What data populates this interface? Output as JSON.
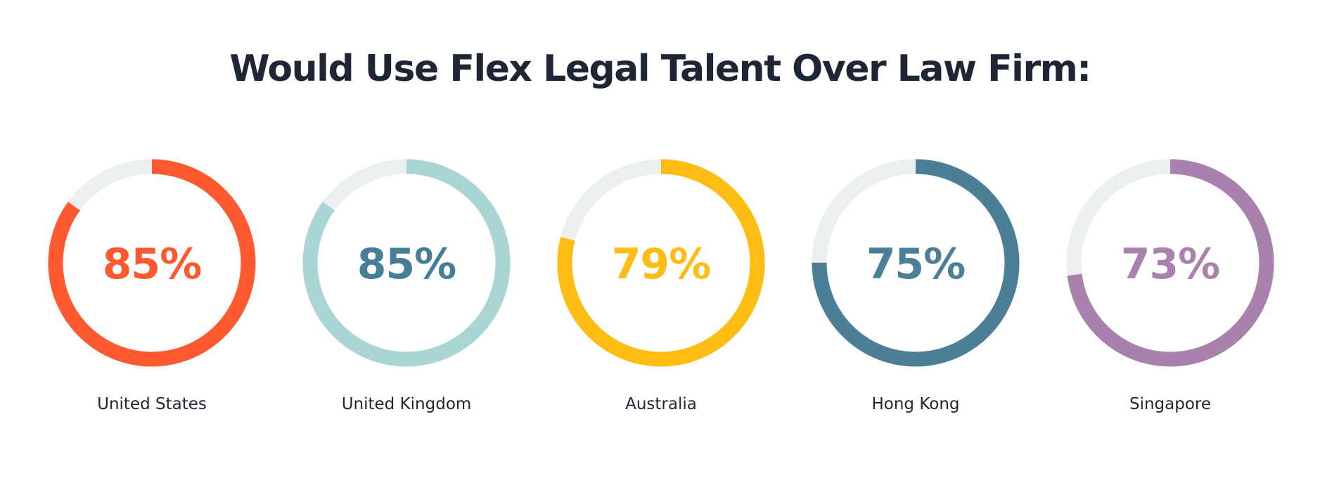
{
  "chart_data": {
    "type": "donut",
    "title": "Would Use Flex Legal Talent Over Law Firm:",
    "track_color": "#eceff0",
    "items": [
      {
        "label": "United States",
        "value": 85,
        "value_label": "85%",
        "color": "#ff5a2f",
        "text_color": "#ff5a2f"
      },
      {
        "label": "United Kingdom",
        "value": 85,
        "value_label": "85%",
        "color": "#a9d5d5",
        "text_color": "#457e96"
      },
      {
        "label": "Australia",
        "value": 79,
        "value_label": "79%",
        "color": "#ffbc13",
        "text_color": "#ffbc13"
      },
      {
        "label": "Hong Kong",
        "value": 75,
        "value_label": "75%",
        "color": "#4a7f97",
        "text_color": "#4a7f97"
      },
      {
        "label": "Singapore",
        "value": 73,
        "value_label": "73%",
        "color": "#a981ad",
        "text_color": "#a981ad"
      }
    ]
  }
}
